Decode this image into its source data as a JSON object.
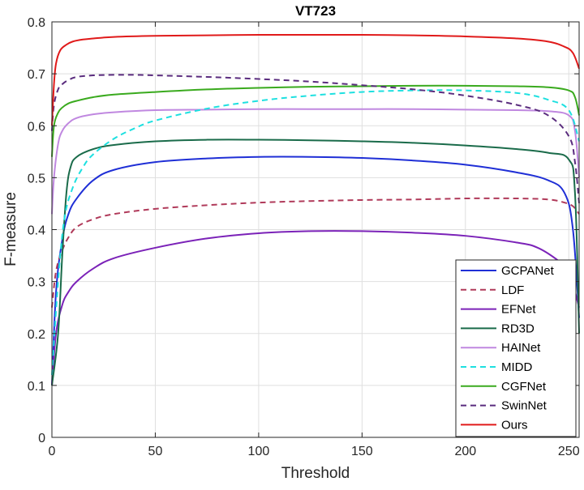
{
  "chart_data": {
    "type": "line",
    "title": "VT723",
    "xlabel": "Threshold",
    "ylabel": "F-measure",
    "xlim": [
      0,
      255
    ],
    "ylim": [
      0,
      0.8
    ],
    "xticks": [
      0,
      50,
      100,
      150,
      200,
      250
    ],
    "yticks": [
      0,
      0.1,
      0.2,
      0.3,
      0.4,
      0.5,
      0.6,
      0.7,
      0.8
    ],
    "xtick_labels": [
      "0",
      "50",
      "100",
      "150",
      "200",
      "250"
    ],
    "ytick_labels": [
      "0",
      "0.1",
      "0.2",
      "0.3",
      "0.4",
      "0.5",
      "0.6",
      "0.7",
      "0.8"
    ],
    "grid": true,
    "legend_position": "bottom-right",
    "series": [
      {
        "name": "GCPANet",
        "color": "#1f2fd6",
        "dash": "solid",
        "x": [
          0,
          2,
          5,
          8,
          12,
          20,
          30,
          50,
          75,
          100,
          125,
          150,
          175,
          200,
          225,
          240,
          248,
          252,
          255
        ],
        "y": [
          0.1,
          0.28,
          0.38,
          0.43,
          0.46,
          0.495,
          0.515,
          0.53,
          0.537,
          0.54,
          0.54,
          0.538,
          0.533,
          0.525,
          0.51,
          0.495,
          0.47,
          0.4,
          0.23
        ]
      },
      {
        "name": "LDF",
        "color": "#b03a5a",
        "dash": "dashed",
        "x": [
          0,
          2,
          5,
          8,
          12,
          20,
          30,
          50,
          75,
          100,
          125,
          150,
          175,
          200,
          225,
          240,
          248,
          252,
          255
        ],
        "y": [
          0.25,
          0.32,
          0.36,
          0.385,
          0.405,
          0.42,
          0.43,
          0.44,
          0.447,
          0.452,
          0.455,
          0.457,
          0.458,
          0.46,
          0.46,
          0.458,
          0.452,
          0.445,
          0.43
        ]
      },
      {
        "name": "EFNet",
        "color": "#7b22b8",
        "dash": "solid",
        "x": [
          0,
          2,
          5,
          8,
          12,
          20,
          30,
          50,
          75,
          100,
          125,
          150,
          175,
          200,
          225,
          235,
          245,
          250,
          255
        ],
        "y": [
          0.1,
          0.2,
          0.255,
          0.28,
          0.3,
          0.325,
          0.345,
          0.365,
          0.383,
          0.393,
          0.397,
          0.397,
          0.394,
          0.388,
          0.375,
          0.365,
          0.34,
          0.32,
          0.25
        ]
      },
      {
        "name": "RD3D",
        "color": "#1a6b4a",
        "dash": "solid",
        "x": [
          0,
          3,
          5,
          7,
          9,
          12,
          20,
          30,
          50,
          75,
          100,
          125,
          150,
          175,
          200,
          225,
          240,
          250,
          253,
          255
        ],
        "y": [
          0.1,
          0.2,
          0.35,
          0.47,
          0.52,
          0.54,
          0.555,
          0.563,
          0.57,
          0.573,
          0.573,
          0.572,
          0.57,
          0.567,
          0.562,
          0.555,
          0.548,
          0.535,
          0.47,
          0.2
        ]
      },
      {
        "name": "HAINet",
        "color": "#c088e0",
        "dash": "solid",
        "x": [
          0,
          1,
          3,
          5,
          8,
          12,
          20,
          30,
          50,
          75,
          100,
          125,
          150,
          175,
          200,
          225,
          240,
          250,
          253,
          255
        ],
        "y": [
          0.43,
          0.5,
          0.565,
          0.59,
          0.605,
          0.615,
          0.622,
          0.626,
          0.63,
          0.631,
          0.632,
          0.632,
          0.632,
          0.632,
          0.631,
          0.63,
          0.628,
          0.62,
          0.59,
          0.5
        ]
      },
      {
        "name": "MIDD",
        "color": "#1ee0e0",
        "dash": "dashed",
        "x": [
          0,
          3,
          6,
          10,
          15,
          20,
          30,
          40,
          50,
          75,
          100,
          125,
          150,
          175,
          200,
          225,
          240,
          250,
          255
        ],
        "y": [
          0.12,
          0.3,
          0.42,
          0.48,
          0.52,
          0.545,
          0.575,
          0.595,
          0.61,
          0.633,
          0.648,
          0.658,
          0.665,
          0.668,
          0.668,
          0.663,
          0.65,
          0.63,
          0.57
        ]
      },
      {
        "name": "CGFNet",
        "color": "#3aaa1e",
        "dash": "solid",
        "x": [
          0,
          1,
          3,
          5,
          8,
          12,
          20,
          30,
          50,
          75,
          100,
          125,
          150,
          175,
          200,
          225,
          240,
          250,
          253,
          255
        ],
        "y": [
          0.54,
          0.6,
          0.625,
          0.635,
          0.643,
          0.648,
          0.655,
          0.66,
          0.665,
          0.67,
          0.673,
          0.675,
          0.676,
          0.677,
          0.677,
          0.676,
          0.674,
          0.668,
          0.655,
          0.62
        ]
      },
      {
        "name": "SwinNet",
        "color": "#5a2c7e",
        "dash": "dashed",
        "x": [
          0,
          1,
          3,
          5,
          8,
          12,
          20,
          30,
          40,
          50,
          75,
          100,
          125,
          150,
          175,
          200,
          225,
          240,
          250,
          253,
          255
        ],
        "y": [
          0.59,
          0.64,
          0.67,
          0.68,
          0.688,
          0.694,
          0.697,
          0.698,
          0.698,
          0.697,
          0.694,
          0.69,
          0.685,
          0.678,
          0.67,
          0.658,
          0.64,
          0.62,
          0.58,
          0.53,
          0.45
        ]
      },
      {
        "name": "Ours",
        "color": "#e01a1a",
        "dash": "solid",
        "x": [
          0,
          1,
          2,
          4,
          7,
          10,
          15,
          20,
          30,
          50,
          75,
          100,
          125,
          150,
          175,
          200,
          225,
          240,
          248,
          252,
          255
        ],
        "y": [
          0.6,
          0.68,
          0.72,
          0.745,
          0.756,
          0.762,
          0.766,
          0.768,
          0.771,
          0.773,
          0.774,
          0.775,
          0.775,
          0.775,
          0.774,
          0.772,
          0.768,
          0.762,
          0.752,
          0.74,
          0.71
        ]
      }
    ]
  }
}
